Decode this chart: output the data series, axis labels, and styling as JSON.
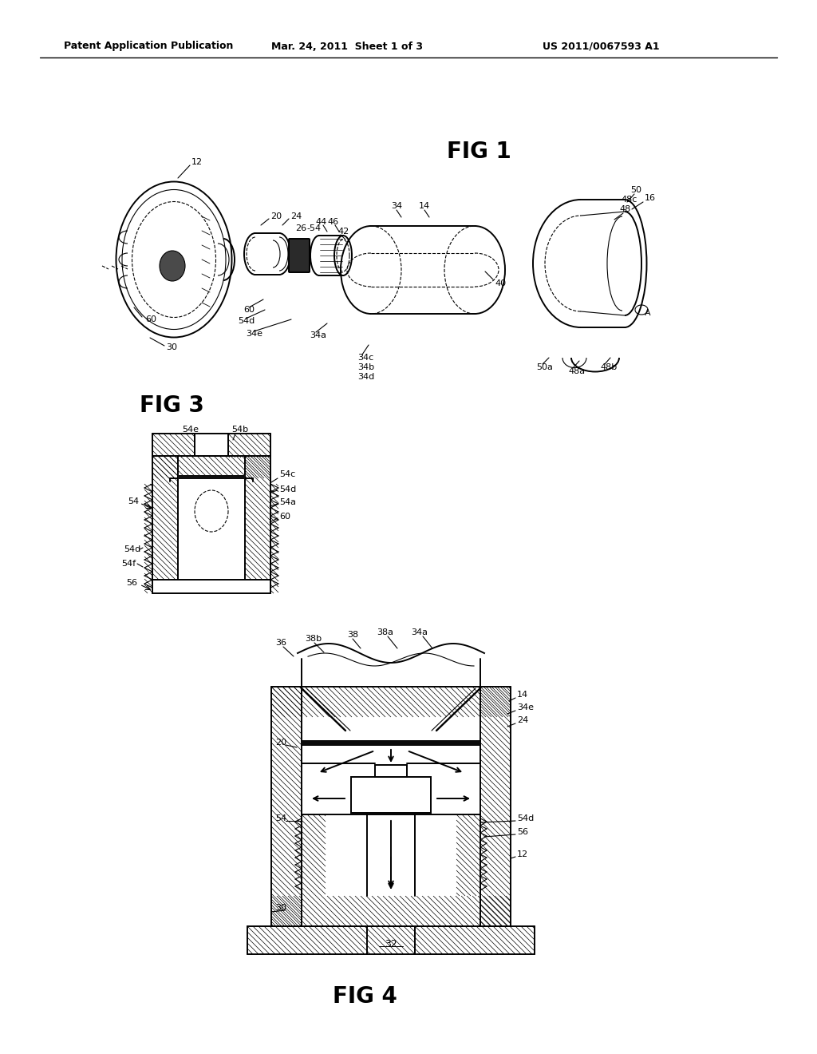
{
  "bg_color": "#ffffff",
  "header_left": "Patent Application Publication",
  "header_center": "Mar. 24, 2011  Sheet 1 of 3",
  "header_right": "US 2011/0067593 A1",
  "line_color": "#000000"
}
